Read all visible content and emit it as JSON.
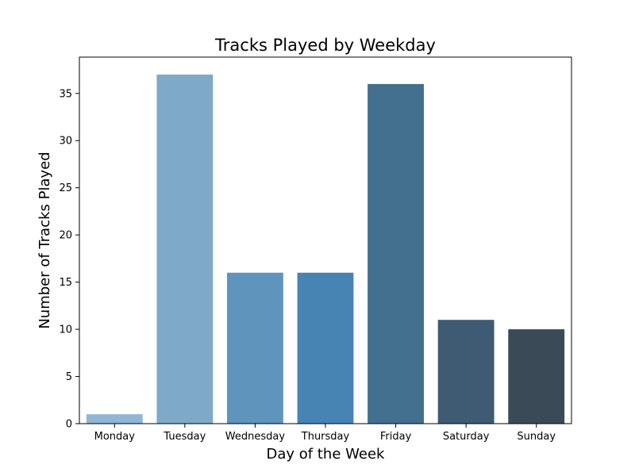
{
  "chart_data": {
    "type": "bar",
    "title": "Tracks Played by Weekday",
    "xlabel": "Day of the Week",
    "ylabel": "Number of Tracks Played",
    "categories": [
      "Monday",
      "Tuesday",
      "Wednesday",
      "Thursday",
      "Friday",
      "Saturday",
      "Sunday"
    ],
    "values": [
      1,
      37,
      16,
      16,
      36,
      11,
      10
    ],
    "bar_colors": [
      "#91b6d5",
      "#7eaac8",
      "#5f95bd",
      "#4884b3",
      "#44708f",
      "#3e5b73",
      "#3a4a57"
    ],
    "ylim": [
      0,
      38.85
    ],
    "yticks": [
      0,
      5,
      10,
      15,
      20,
      25,
      30,
      35
    ],
    "grid": false,
    "legend": "none"
  }
}
